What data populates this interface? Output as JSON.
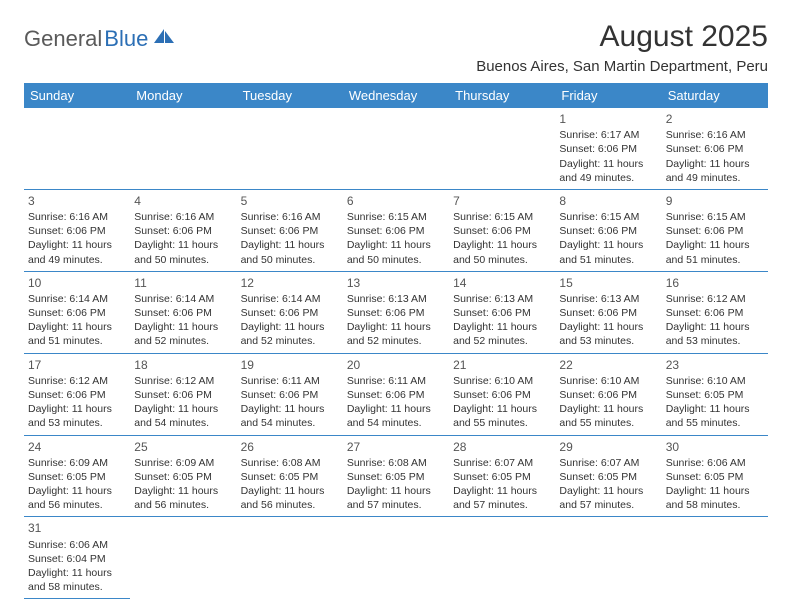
{
  "logo": {
    "text1": "General",
    "text2": "Blue"
  },
  "title": "August 2025",
  "location": "Buenos Aires, San Martin Department, Peru",
  "colors": {
    "header_bg": "#3b87c8",
    "header_fg": "#ffffff",
    "border": "#3b87c8",
    "logo_gray": "#5a5a5a",
    "logo_blue": "#2c6fb5",
    "text": "#333333"
  },
  "weekdays": [
    "Sunday",
    "Monday",
    "Tuesday",
    "Wednesday",
    "Thursday",
    "Friday",
    "Saturday"
  ],
  "weeks": [
    [
      null,
      null,
      null,
      null,
      null,
      {
        "n": "1",
        "sr": "6:17 AM",
        "ss": "6:06 PM",
        "dl": "11 hours and 49 minutes."
      },
      {
        "n": "2",
        "sr": "6:16 AM",
        "ss": "6:06 PM",
        "dl": "11 hours and 49 minutes."
      }
    ],
    [
      {
        "n": "3",
        "sr": "6:16 AM",
        "ss": "6:06 PM",
        "dl": "11 hours and 49 minutes."
      },
      {
        "n": "4",
        "sr": "6:16 AM",
        "ss": "6:06 PM",
        "dl": "11 hours and 50 minutes."
      },
      {
        "n": "5",
        "sr": "6:16 AM",
        "ss": "6:06 PM",
        "dl": "11 hours and 50 minutes."
      },
      {
        "n": "6",
        "sr": "6:15 AM",
        "ss": "6:06 PM",
        "dl": "11 hours and 50 minutes."
      },
      {
        "n": "7",
        "sr": "6:15 AM",
        "ss": "6:06 PM",
        "dl": "11 hours and 50 minutes."
      },
      {
        "n": "8",
        "sr": "6:15 AM",
        "ss": "6:06 PM",
        "dl": "11 hours and 51 minutes."
      },
      {
        "n": "9",
        "sr": "6:15 AM",
        "ss": "6:06 PM",
        "dl": "11 hours and 51 minutes."
      }
    ],
    [
      {
        "n": "10",
        "sr": "6:14 AM",
        "ss": "6:06 PM",
        "dl": "11 hours and 51 minutes."
      },
      {
        "n": "11",
        "sr": "6:14 AM",
        "ss": "6:06 PM",
        "dl": "11 hours and 52 minutes."
      },
      {
        "n": "12",
        "sr": "6:14 AM",
        "ss": "6:06 PM",
        "dl": "11 hours and 52 minutes."
      },
      {
        "n": "13",
        "sr": "6:13 AM",
        "ss": "6:06 PM",
        "dl": "11 hours and 52 minutes."
      },
      {
        "n": "14",
        "sr": "6:13 AM",
        "ss": "6:06 PM",
        "dl": "11 hours and 52 minutes."
      },
      {
        "n": "15",
        "sr": "6:13 AM",
        "ss": "6:06 PM",
        "dl": "11 hours and 53 minutes."
      },
      {
        "n": "16",
        "sr": "6:12 AM",
        "ss": "6:06 PM",
        "dl": "11 hours and 53 minutes."
      }
    ],
    [
      {
        "n": "17",
        "sr": "6:12 AM",
        "ss": "6:06 PM",
        "dl": "11 hours and 53 minutes."
      },
      {
        "n": "18",
        "sr": "6:12 AM",
        "ss": "6:06 PM",
        "dl": "11 hours and 54 minutes."
      },
      {
        "n": "19",
        "sr": "6:11 AM",
        "ss": "6:06 PM",
        "dl": "11 hours and 54 minutes."
      },
      {
        "n": "20",
        "sr": "6:11 AM",
        "ss": "6:06 PM",
        "dl": "11 hours and 54 minutes."
      },
      {
        "n": "21",
        "sr": "6:10 AM",
        "ss": "6:06 PM",
        "dl": "11 hours and 55 minutes."
      },
      {
        "n": "22",
        "sr": "6:10 AM",
        "ss": "6:06 PM",
        "dl": "11 hours and 55 minutes."
      },
      {
        "n": "23",
        "sr": "6:10 AM",
        "ss": "6:05 PM",
        "dl": "11 hours and 55 minutes."
      }
    ],
    [
      {
        "n": "24",
        "sr": "6:09 AM",
        "ss": "6:05 PM",
        "dl": "11 hours and 56 minutes."
      },
      {
        "n": "25",
        "sr": "6:09 AM",
        "ss": "6:05 PM",
        "dl": "11 hours and 56 minutes."
      },
      {
        "n": "26",
        "sr": "6:08 AM",
        "ss": "6:05 PM",
        "dl": "11 hours and 56 minutes."
      },
      {
        "n": "27",
        "sr": "6:08 AM",
        "ss": "6:05 PM",
        "dl": "11 hours and 57 minutes."
      },
      {
        "n": "28",
        "sr": "6:07 AM",
        "ss": "6:05 PM",
        "dl": "11 hours and 57 minutes."
      },
      {
        "n": "29",
        "sr": "6:07 AM",
        "ss": "6:05 PM",
        "dl": "11 hours and 57 minutes."
      },
      {
        "n": "30",
        "sr": "6:06 AM",
        "ss": "6:05 PM",
        "dl": "11 hours and 58 minutes."
      }
    ],
    [
      {
        "n": "31",
        "sr": "6:06 AM",
        "ss": "6:04 PM",
        "dl": "11 hours and 58 minutes."
      },
      null,
      null,
      null,
      null,
      null,
      null
    ]
  ],
  "labels": {
    "sunrise": "Sunrise:",
    "sunset": "Sunset:",
    "daylight": "Daylight:"
  }
}
